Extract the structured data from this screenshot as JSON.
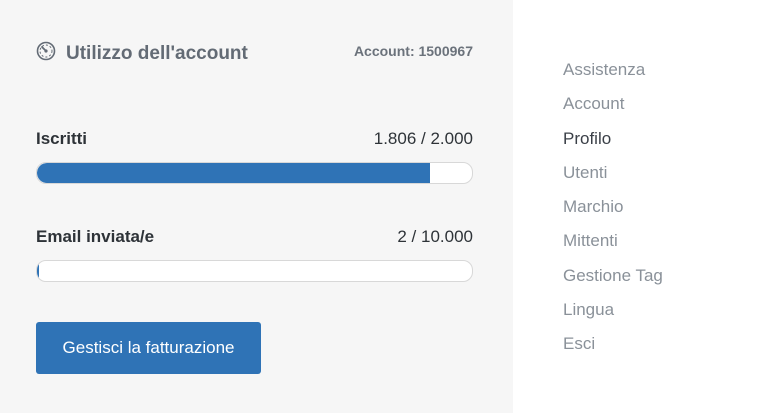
{
  "usage": {
    "title": "Utilizzo dell'account",
    "account_id": "Account: 1500967",
    "metrics": [
      {
        "label": "Iscritti",
        "value": "1.806 / 2.000",
        "fraction": 0.903
      },
      {
        "label": "Email inviata/e",
        "value": "2 / 10.000",
        "fraction": 0.0002
      }
    ],
    "billing_button": "Gestisci la fatturazione",
    "accent_color": "#2f73b6"
  },
  "nav": {
    "items": [
      {
        "label": "Assistenza"
      },
      {
        "label": "Account"
      },
      {
        "label": "Profilo",
        "active": true
      },
      {
        "label": "Utenti"
      },
      {
        "label": "Marchio"
      },
      {
        "label": "Mittenti"
      },
      {
        "label": "Gestione Tag"
      },
      {
        "label": "Lingua"
      },
      {
        "label": "Esci"
      }
    ]
  }
}
